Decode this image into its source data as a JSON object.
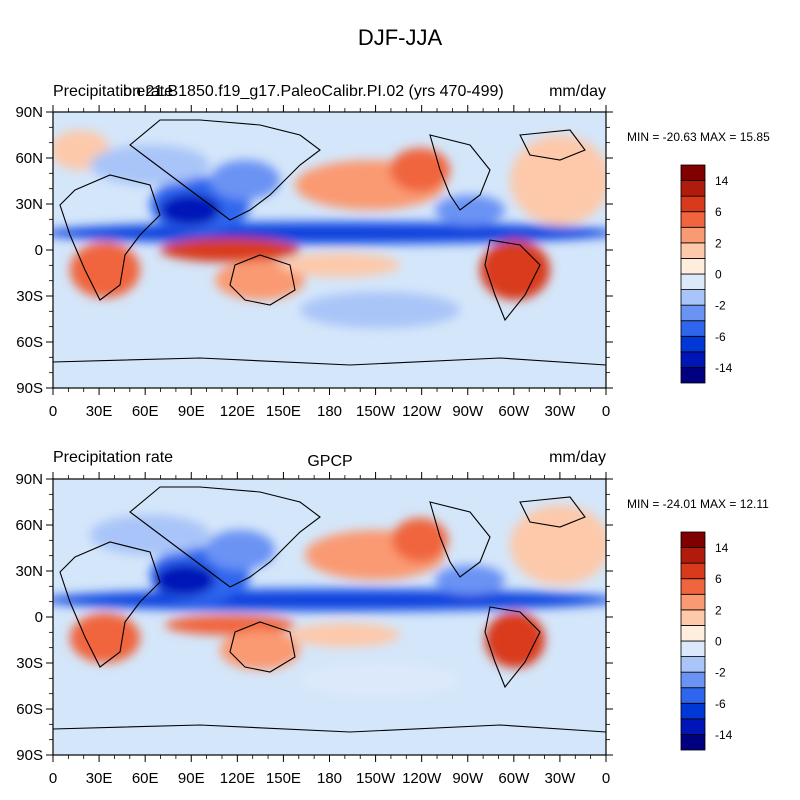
{
  "figure": {
    "title": "DJF-JJA",
    "colors": {
      "ocean_base": "#d4e6fa",
      "frame": "#000000",
      "coast": "#000000"
    },
    "colorbar": {
      "colors": [
        "#000080",
        "#0015b8",
        "#0038d8",
        "#2e66ee",
        "#6b93f4",
        "#a9c4f8",
        "#dbe9fb",
        "#ffeedd",
        "#fdc9aa",
        "#fa9a72",
        "#f0653e",
        "#d93a1c",
        "#b01b0c",
        "#800000"
      ],
      "labels": [
        "14",
        "6",
        "2",
        "0",
        "-2",
        "-6",
        "-14"
      ]
    }
  },
  "panels": [
    {
      "id": "model",
      "left_title": "Precipitation rate",
      "center_title": "b.e21.B1850.f19_g17.PaleoCalibr.PI.02 (yrs 470-499)",
      "units": "mm/day",
      "stats": "MIN = -20.63 MAX =  15.85"
    },
    {
      "id": "obs",
      "left_title": "Precipitation rate",
      "center_title": "GPCP",
      "units": "mm/day",
      "stats": "MIN = -24.01 MAX =  12.11"
    }
  ],
  "axes": {
    "lat_ticks": [
      "90N",
      "60N",
      "30N",
      "0",
      "30S",
      "60S",
      "90S"
    ],
    "lon_ticks": [
      "0",
      "30E",
      "60E",
      "90E",
      "120E",
      "150E",
      "180",
      "150W",
      "120W",
      "90W",
      "60W",
      "30W",
      "0"
    ]
  }
}
